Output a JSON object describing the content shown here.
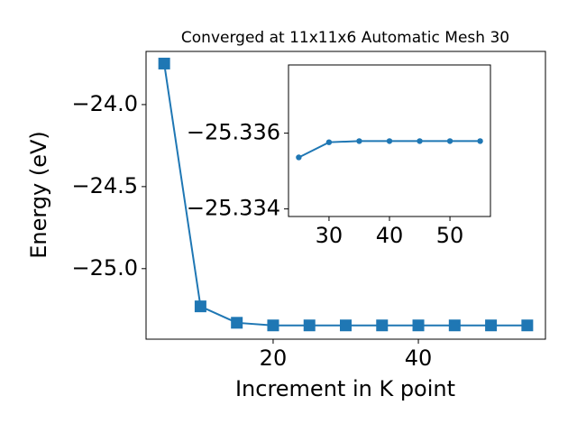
{
  "chart_data": [
    {
      "type": "line",
      "title": "Converged at 11x11x6 Automatic Mesh 30",
      "x_label": "Increment in K point",
      "y_label": "Energy (eV)",
      "x": [
        5,
        10,
        15,
        20,
        25,
        30,
        35,
        40,
        45,
        50,
        55
      ],
      "values": [
        -23.75,
        -25.23,
        -25.33,
        -25.346,
        -25.346,
        -25.346,
        -25.346,
        -25.346,
        -25.346,
        -25.346,
        -25.346
      ],
      "color": "#1f77b4",
      "marker": "square",
      "xlim": [
        2.5,
        57.5
      ],
      "xticks": [
        20,
        40
      ],
      "ylim": [
        -25.43,
        -23.676
      ],
      "yticks": [
        {
          "value": -24.0,
          "label": "−24.0"
        },
        {
          "value": -24.5,
          "label": "−24.5"
        },
        {
          "value": -25.0,
          "label": "−25.0"
        }
      ]
    },
    {
      "type": "line",
      "x": [
        25,
        30,
        35,
        40,
        45,
        50,
        55
      ],
      "values": [
        -25.33536,
        -25.33576,
        -25.33579,
        -25.33579,
        -25.33579,
        -25.33579,
        -25.33579
      ],
      "color": "#1f77b4",
      "marker": "circle",
      "xlim": [
        23.3,
        56.7
      ],
      "xticks": [
        30,
        40,
        50
      ],
      "ylim": [
        -25.3338,
        -25.3378
      ],
      "yticks": [
        {
          "value": -25.336,
          "label": "−25.336"
        },
        {
          "value": -25.334,
          "label": "−25.334"
        }
      ]
    }
  ]
}
